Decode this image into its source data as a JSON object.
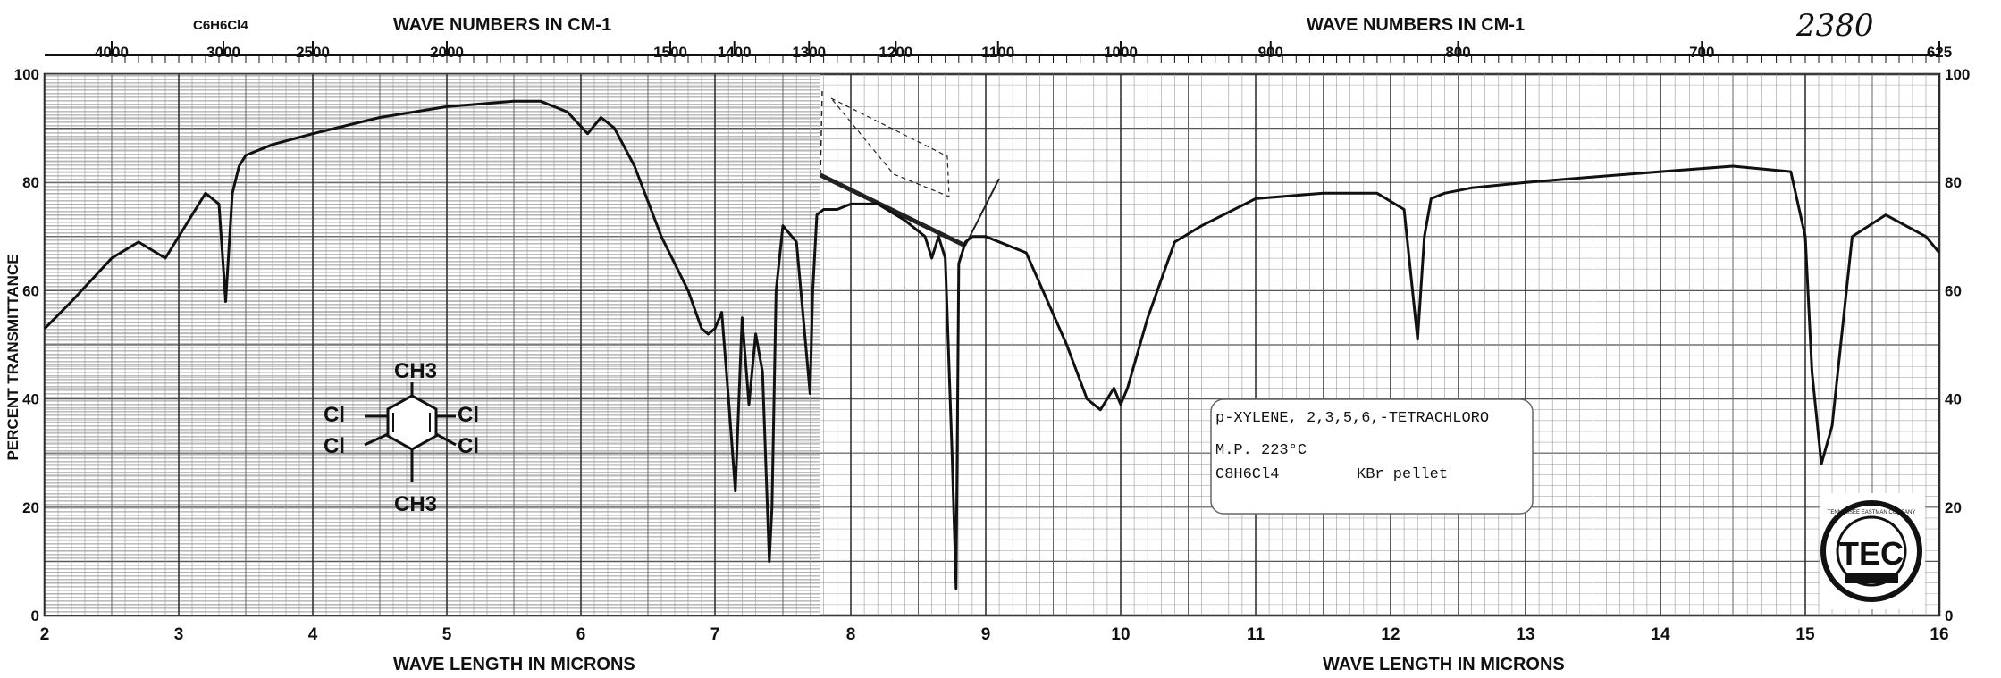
{
  "sample_number": "2380",
  "top_axis": {
    "label": "WAVE NUMBERS IN CM-1",
    "ticks": [
      "4000",
      "3000",
      "2500",
      "2000",
      "1500",
      "1400",
      "1300",
      "1200",
      "1100",
      "1000",
      "900",
      "800",
      "700",
      "625"
    ]
  },
  "solvent_note": "C6H6Cl4",
  "bottom_axis": {
    "label": "WAVE LENGTH IN MICRONS",
    "ticks": [
      "2",
      "3",
      "4",
      "5",
      "6",
      "7",
      "8",
      "9",
      "10",
      "11",
      "12",
      "13",
      "14",
      "15",
      "16"
    ]
  },
  "left_axis": {
    "label": "PERCENT TRANSMITTANCE",
    "ticks": [
      "0",
      "20",
      "40",
      "60",
      "80",
      "100"
    ]
  },
  "right_axis": {
    "ticks": [
      "0",
      "20",
      "40",
      "60",
      "80",
      "100"
    ]
  },
  "sample_card": {
    "line1": "p-XYLENE, 2,3,5,6,-TETRACHLORO",
    "line2": "M.P. 223°C",
    "formula": "C8H6Cl4",
    "method": "KBr pellet"
  },
  "structure": {
    "top": "CH3",
    "bottom": "CH3",
    "left_upper": "Cl",
    "left_lower": "Cl",
    "right_upper": "Cl",
    "right_lower": "Cl"
  },
  "logo": {
    "text": "TEC",
    "ring": "TENNESSEE EASTMAN COMPANY",
    "bottom": "KINGSPORT, TENNESSEE"
  },
  "chart_data": {
    "type": "line",
    "x_unit": "microns",
    "y_unit": "percent transmittance",
    "xlim": [
      2,
      16
    ],
    "ylim": [
      0,
      100
    ],
    "grid": true,
    "x": [
      2.0,
      2.2,
      2.5,
      2.7,
      2.9,
      3.0,
      3.2,
      3.3,
      3.35,
      3.4,
      3.45,
      3.5,
      3.7,
      4.0,
      4.5,
      5.0,
      5.5,
      5.7,
      5.9,
      6.05,
      6.15,
      6.25,
      6.4,
      6.6,
      6.8,
      6.9,
      6.95,
      7.0,
      7.05,
      7.1,
      7.15,
      7.2,
      7.25,
      7.3,
      7.35,
      7.4,
      7.42,
      7.45,
      7.5,
      7.6,
      7.7,
      7.72,
      7.75,
      7.8,
      7.9,
      8.0,
      8.2,
      8.4,
      8.55,
      8.6,
      8.65,
      8.7,
      8.75,
      8.78,
      8.8,
      8.85,
      8.9,
      9.0,
      9.3,
      9.6,
      9.75,
      9.85,
      9.95,
      10.0,
      10.05,
      10.2,
      10.4,
      10.6,
      11.0,
      11.5,
      11.9,
      12.1,
      12.2,
      12.25,
      12.3,
      12.4,
      12.6,
      13.0,
      13.5,
      14.0,
      14.5,
      14.9,
      15.0,
      15.05,
      15.12,
      15.2,
      15.35,
      15.6,
      15.9,
      16.0
    ],
    "y": [
      53,
      58,
      66,
      69,
      66,
      70,
      78,
      76,
      58,
      78,
      83,
      85,
      87,
      89,
      92,
      94,
      95,
      95,
      93,
      89,
      92,
      90,
      83,
      70,
      60,
      53,
      52,
      53,
      56,
      40,
      23,
      55,
      39,
      52,
      45,
      10,
      20,
      60,
      72,
      69,
      41,
      60,
      74,
      75,
      75,
      76,
      76,
      73,
      70,
      66,
      70,
      66,
      30,
      5,
      65,
      69,
      70,
      70,
      67,
      50,
      40,
      38,
      42,
      39,
      42,
      55,
      69,
      72,
      77,
      78,
      78,
      75,
      51,
      70,
      77,
      78,
      79,
      80,
      81,
      82,
      83,
      82,
      70,
      45,
      28,
      35,
      70,
      74,
      70,
      67
    ]
  }
}
